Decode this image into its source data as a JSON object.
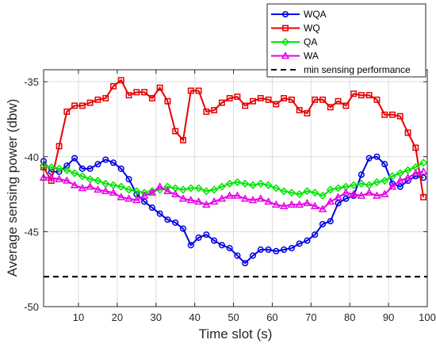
{
  "chart_data": {
    "type": "line",
    "xlabel": "Time slot (s)",
    "ylabel": "Average sensing power (dbw)",
    "xlim": [
      1,
      100
    ],
    "ylim": [
      -50,
      -34.2
    ],
    "xticks": [
      10,
      20,
      30,
      40,
      50,
      60,
      70,
      80,
      90,
      100
    ],
    "yticks": [
      -50,
      -45,
      -40,
      -35
    ],
    "xtick_labels": [
      "10",
      "20",
      "30",
      "40",
      "50",
      "60",
      "70",
      "80",
      "90",
      "100"
    ],
    "ytick_labels": [
      "-50",
      "-45",
      "-40",
      "-35"
    ],
    "grid": true,
    "legend_position": "top-right",
    "x": [
      1,
      3,
      5,
      7,
      9,
      11,
      13,
      15,
      17,
      19,
      21,
      23,
      25,
      27,
      29,
      31,
      33,
      35,
      37,
      39,
      41,
      43,
      45,
      47,
      49,
      51,
      53,
      55,
      57,
      59,
      61,
      63,
      65,
      67,
      69,
      71,
      73,
      75,
      77,
      79,
      81,
      83,
      85,
      87,
      89,
      91,
      93,
      95,
      97,
      99
    ],
    "series": [
      {
        "name": "WQA",
        "color": "#0000e6",
        "marker": "circle",
        "dashed": false,
        "values": [
          -40.3,
          -41.0,
          -41.0,
          -40.6,
          -40.1,
          -40.8,
          -40.8,
          -40.5,
          -40.2,
          -40.4,
          -40.8,
          -41.5,
          -42.5,
          -43.0,
          -43.4,
          -43.8,
          -44.2,
          -44.4,
          -44.8,
          -45.9,
          -45.4,
          -45.2,
          -45.6,
          -45.9,
          -46.1,
          -46.6,
          -47.1,
          -46.6,
          -46.2,
          -46.2,
          -46.3,
          -46.2,
          -46.1,
          -45.8,
          -45.6,
          -45.2,
          -44.5,
          -44.3,
          -43.1,
          -42.8,
          -42.6,
          -41.2,
          -40.1,
          -40.0,
          -40.5,
          -41.8,
          -42.0,
          -41.6,
          -41.3,
          -41.4
        ]
      },
      {
        "name": "WQ",
        "color": "#e60000",
        "marker": "square",
        "dashed": false,
        "values": [
          -40.7,
          -41.6,
          -39.3,
          -37.0,
          -36.6,
          -36.6,
          -36.4,
          -36.2,
          -36.1,
          -35.3,
          -34.9,
          -35.9,
          -35.7,
          -35.7,
          -36.1,
          -35.4,
          -36.3,
          -38.3,
          -38.9,
          -35.6,
          -35.6,
          -37.0,
          -36.9,
          -36.4,
          -36.1,
          -36.0,
          -36.6,
          -36.3,
          -36.1,
          -36.2,
          -36.5,
          -36.1,
          -36.2,
          -36.9,
          -37.1,
          -36.2,
          -36.2,
          -36.7,
          -36.3,
          -36.6,
          -35.8,
          -35.9,
          -35.9,
          -36.2,
          -37.2,
          -37.2,
          -37.3,
          -38.4,
          -39.4,
          -42.7
        ]
      },
      {
        "name": "QA",
        "color": "#00e600",
        "marker": "diamond",
        "dashed": false,
        "values": [
          -40.6,
          -40.7,
          -40.8,
          -40.9,
          -41.1,
          -41.3,
          -41.5,
          -41.6,
          -41.8,
          -41.9,
          -42.0,
          -42.2,
          -42.3,
          -42.4,
          -42.3,
          -42.2,
          -42.0,
          -42.1,
          -42.2,
          -42.1,
          -42.1,
          -42.3,
          -42.2,
          -42.0,
          -41.8,
          -41.7,
          -41.8,
          -41.9,
          -41.8,
          -41.9,
          -42.1,
          -42.3,
          -42.4,
          -42.5,
          -42.3,
          -42.4,
          -42.6,
          -42.2,
          -42.1,
          -42.0,
          -41.9,
          -41.8,
          -41.9,
          -41.7,
          -41.6,
          -41.3,
          -41.1,
          -40.9,
          -40.7,
          -40.4
        ]
      },
      {
        "name": "WA",
        "color": "#e600e6",
        "marker": "triangle",
        "dashed": false,
        "values": [
          -41.4,
          -41.4,
          -41.5,
          -41.6,
          -41.9,
          -42.1,
          -42.0,
          -42.2,
          -42.3,
          -42.4,
          -42.7,
          -42.8,
          -42.9,
          -42.6,
          -42.4,
          -42.0,
          -42.3,
          -42.5,
          -42.8,
          -42.9,
          -43.0,
          -43.2,
          -43.0,
          -42.8,
          -42.6,
          -42.6,
          -42.8,
          -42.9,
          -42.8,
          -43.0,
          -43.2,
          -43.3,
          -43.2,
          -43.2,
          -43.1,
          -43.3,
          -43.5,
          -43.0,
          -42.7,
          -42.4,
          -42.5,
          -42.6,
          -42.4,
          -42.6,
          -42.5,
          -42.0,
          -41.6,
          -41.4,
          -41.1,
          -41.0
        ]
      },
      {
        "name": "min sensing performance",
        "color": "#000000",
        "marker": "none",
        "dashed": true,
        "x": [
          1,
          100
        ],
        "values": [
          -48,
          -48
        ]
      }
    ]
  }
}
